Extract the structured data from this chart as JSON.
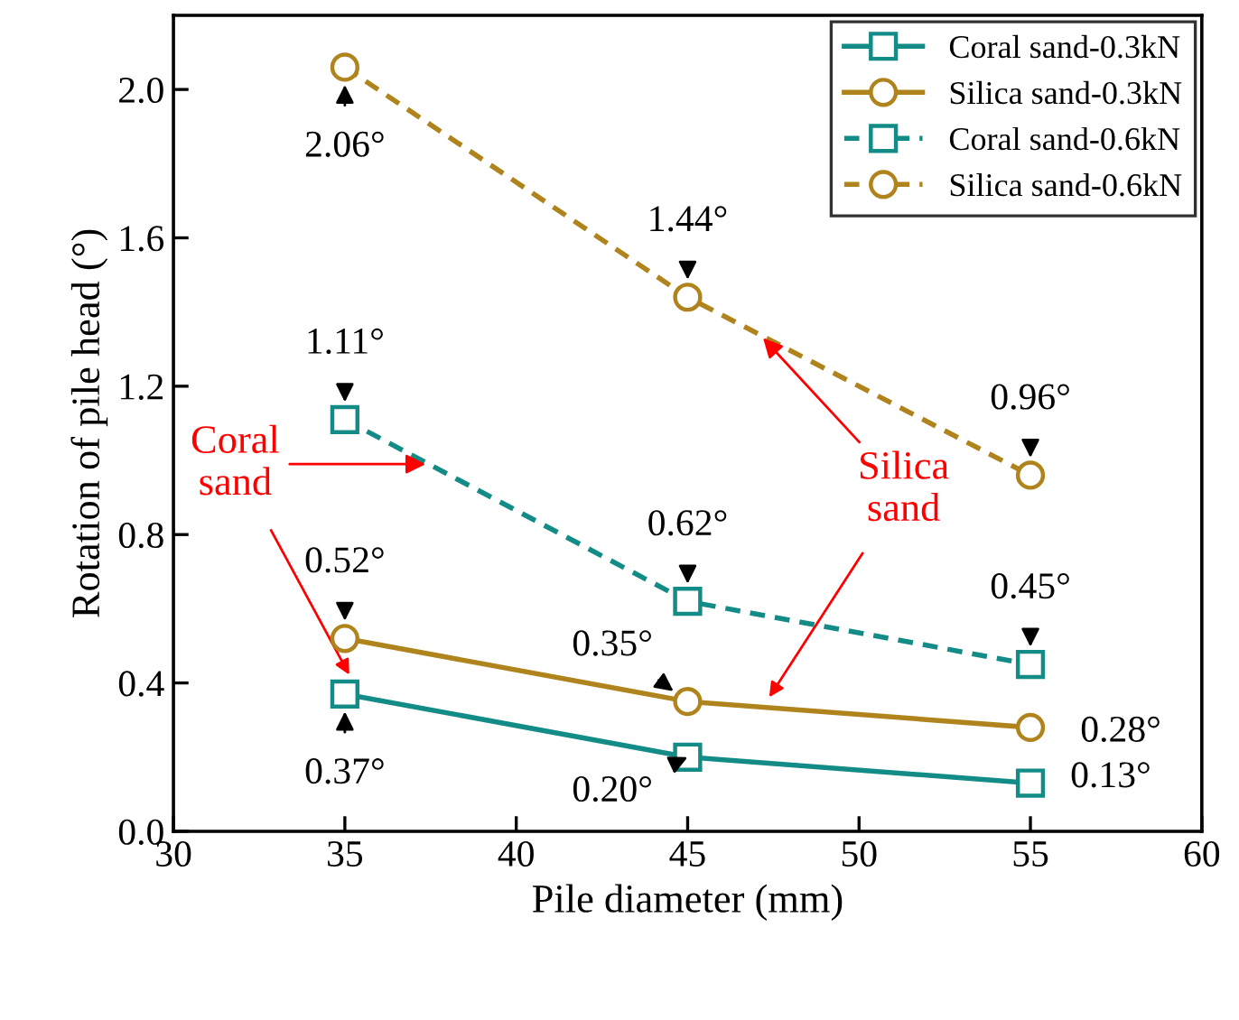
{
  "chart_data": {
    "type": "line",
    "xlabel": "Pile diameter (mm)",
    "ylabel": "Rotation of pile head (°)",
    "x": [
      35,
      45,
      55
    ],
    "xlim": [
      30,
      60
    ],
    "xticks": [
      30,
      35,
      40,
      45,
      50,
      55,
      60
    ],
    "ylim": [
      0,
      2.2
    ],
    "yticks": [
      {
        "value": 0,
        "label": "0.0"
      },
      {
        "value": 0.4,
        "label": "0.4"
      },
      {
        "value": 0.8,
        "label": "0.8"
      },
      {
        "value": 1.2,
        "label": "1.2"
      },
      {
        "value": 1.6,
        "label": "1.6"
      },
      {
        "value": 2.0,
        "label": "2.0"
      }
    ],
    "grid": false,
    "legend": "top right",
    "series": [
      {
        "name": "Coral sand-0.3kN",
        "color": "#138c87",
        "marker": "square",
        "line_style": "solid",
        "values": [
          0.37,
          0.2,
          0.13
        ],
        "value_labels": [
          "0.37°",
          "0.20°",
          "0.13°"
        ]
      },
      {
        "name": "Silica sand-0.3kN",
        "color": "#b0841c",
        "marker": "circle",
        "line_style": "solid",
        "values": [
          0.52,
          0.35,
          0.28
        ],
        "value_labels": [
          "0.52°",
          "0.35°",
          "0.28°"
        ]
      },
      {
        "name": "Coral sand-0.6kN",
        "color": "#138c87",
        "marker": "square",
        "line_style": "dashed",
        "values": [
          1.11,
          0.62,
          0.45
        ],
        "value_labels": [
          "1.11°",
          "0.62°",
          "0.45°"
        ]
      },
      {
        "name": "Silica sand-0.6kN",
        "color": "#b0841c",
        "marker": "circle",
        "line_style": "dashed",
        "values": [
          2.06,
          1.44,
          0.96
        ],
        "value_labels": [
          "2.06°",
          "1.44°",
          "0.96°"
        ]
      }
    ],
    "annotations": [
      {
        "text": "Coral\nsand",
        "x": 37.5,
        "y": 0.99
      },
      {
        "text": "Silica\nsand",
        "x": 47.1,
        "y": 1.34
      }
    ]
  }
}
